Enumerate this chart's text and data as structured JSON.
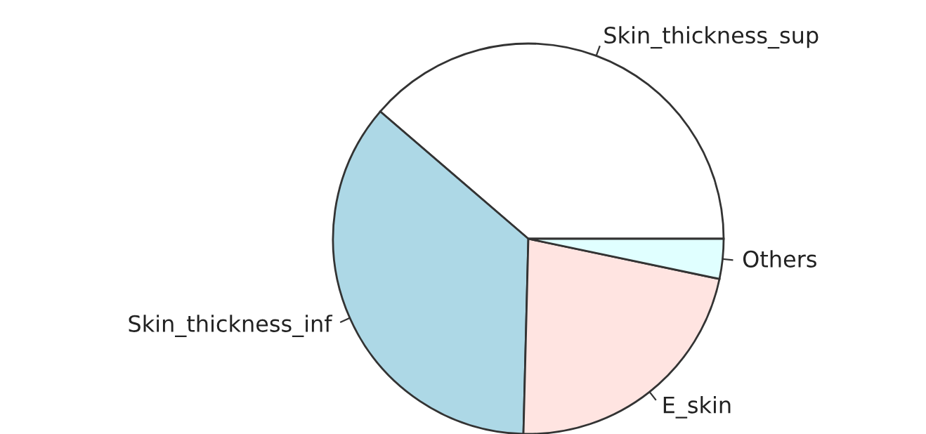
{
  "chart_data": {
    "type": "pie",
    "categories": [
      "Skin_thickness_sup",
      "Skin_thickness_inf",
      "E_skin",
      "Others"
    ],
    "values": [
      38.7,
      35.9,
      22.1,
      3.3
    ],
    "colors": [
      "#ffffff",
      "#add8e6",
      "#ffe4e1",
      "#e0ffff"
    ]
  }
}
